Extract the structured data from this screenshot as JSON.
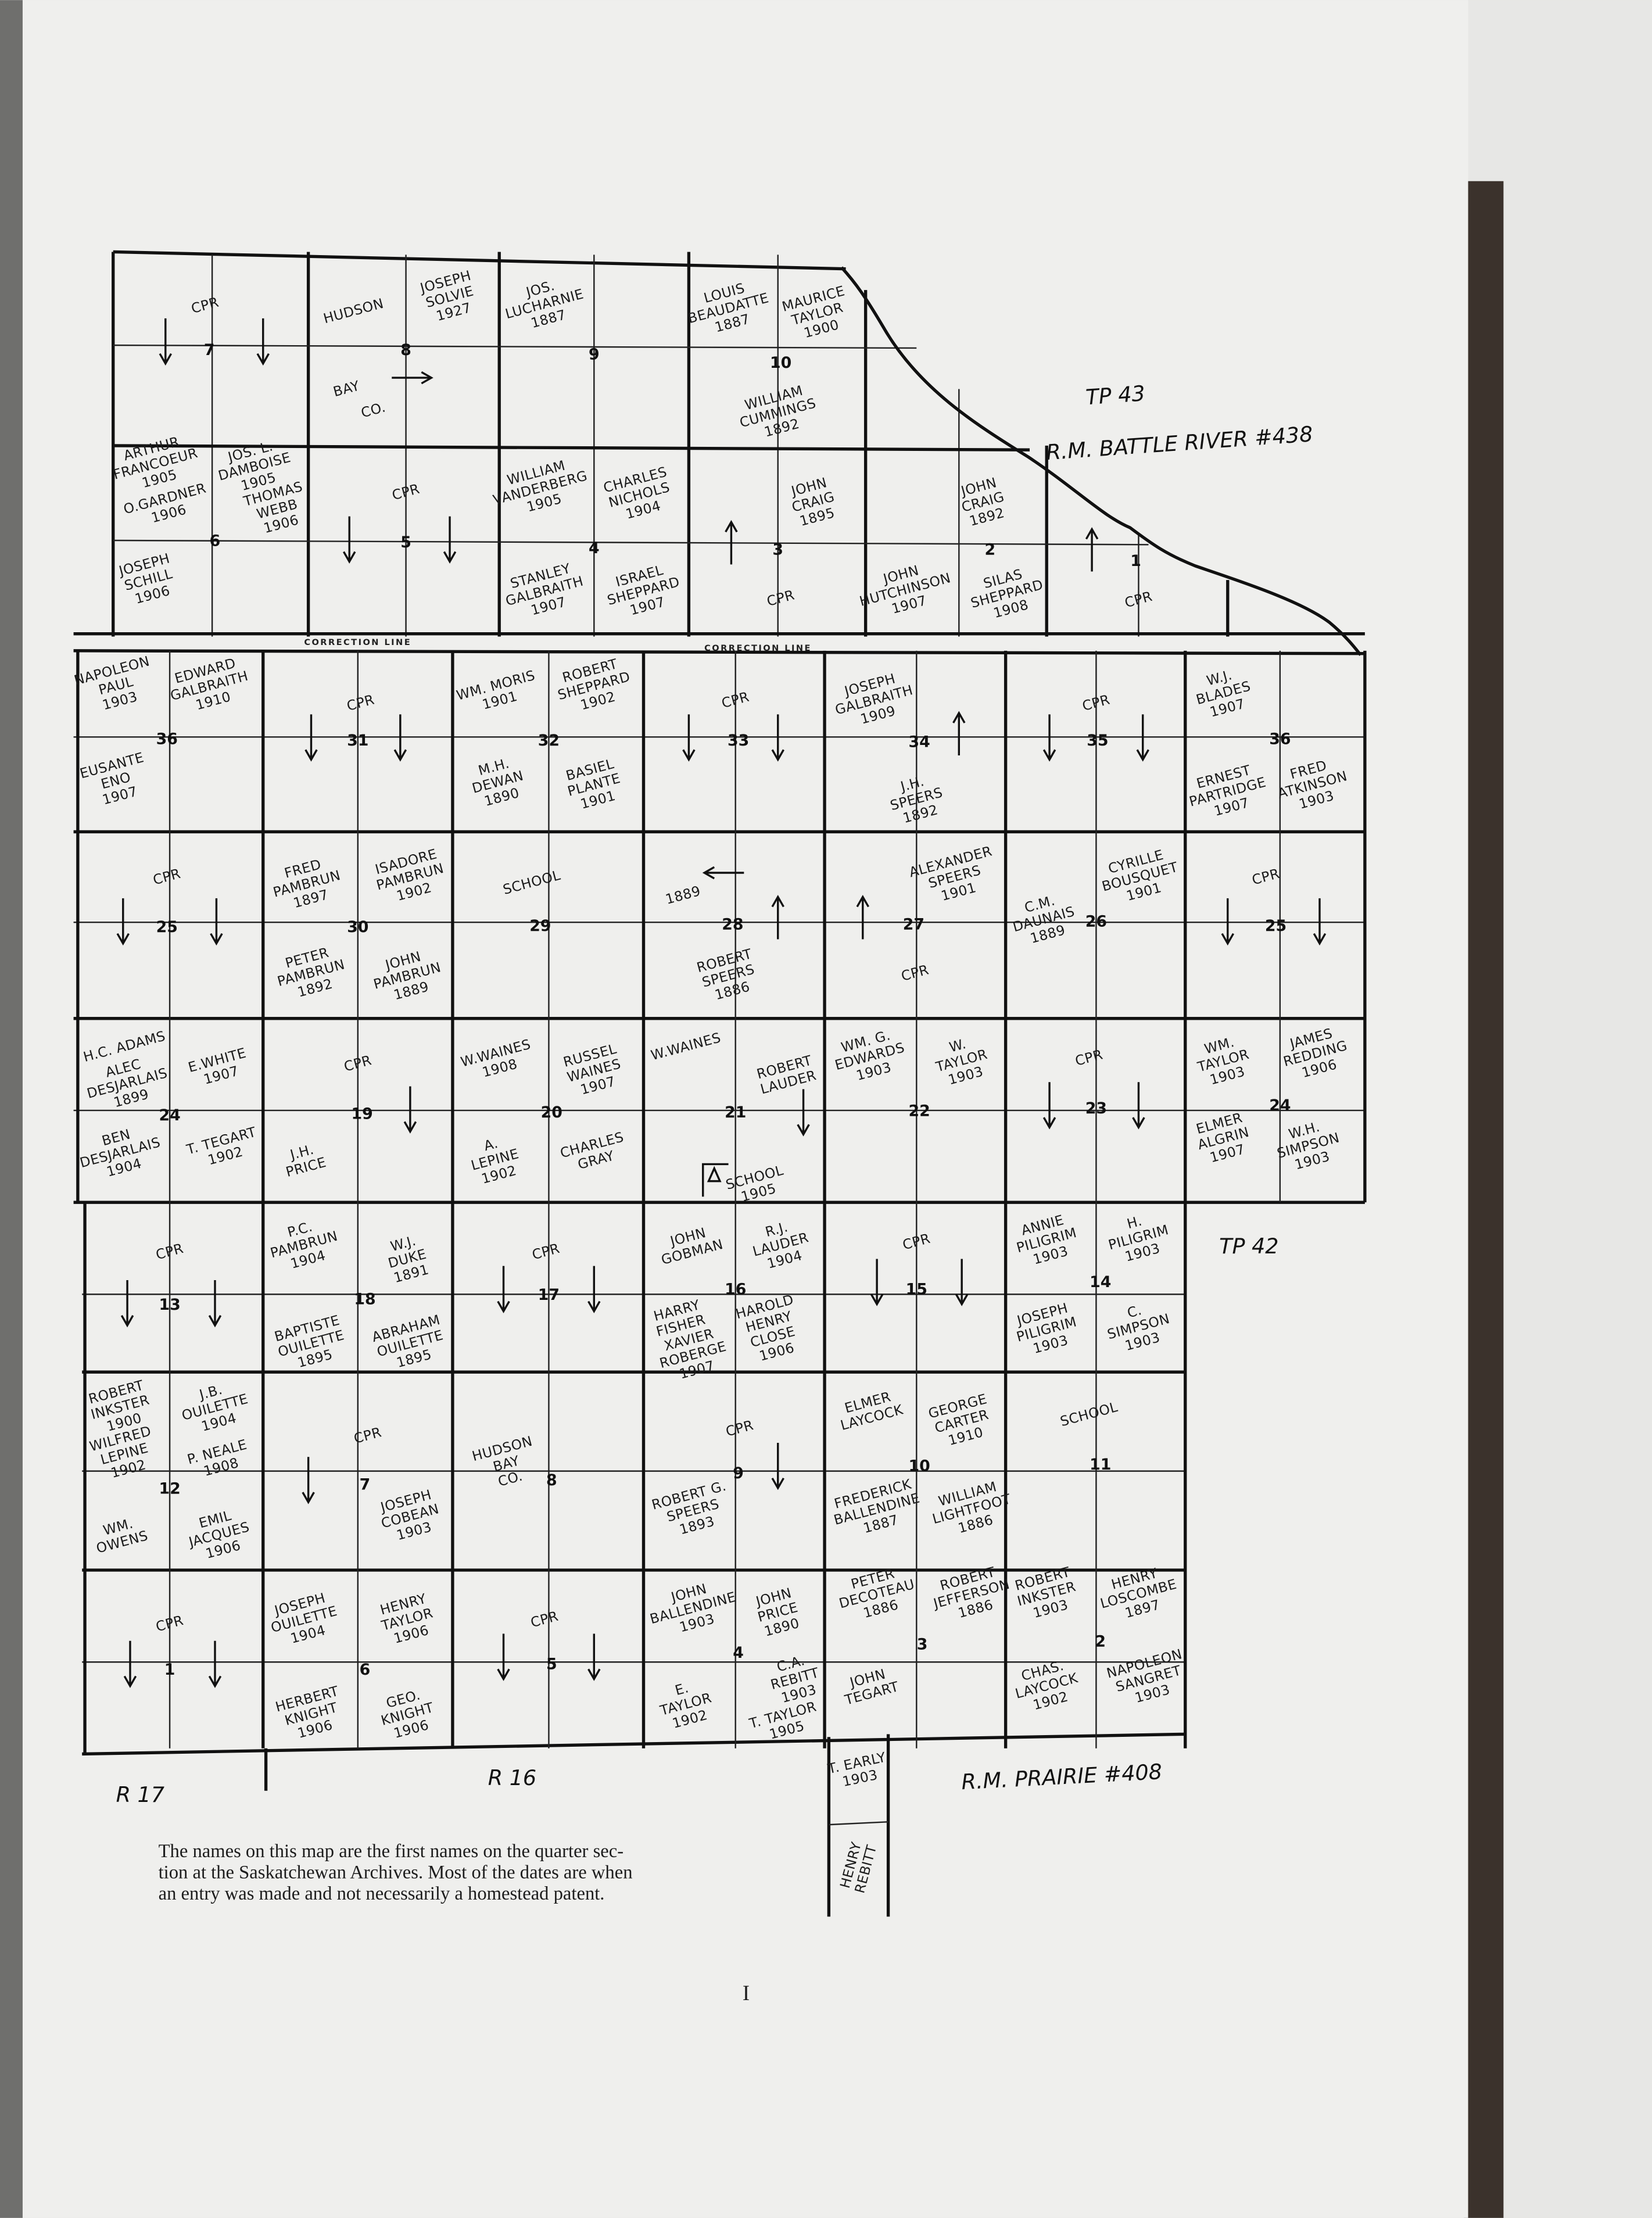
{
  "map": {
    "correction_line": "CORRECTION LINE",
    "tp43": "TP 43",
    "rm_north": "R.M. BATTLE RIVER #438",
    "tp42": "TP 42",
    "r17": "R 17",
    "r16": "R 16",
    "rm_south": "R.M. PRAIRIE #408",
    "extra_parcels": [
      [
        "T. EARLY",
        "1903"
      ],
      [
        "HENRY",
        "REBITT"
      ]
    ],
    "sections": [
      {
        "number": "7",
        "labels": [
          [
            "CPR"
          ]
        ]
      },
      {
        "number": "8",
        "labels": [
          [
            "HUDSON"
          ],
          [
            "BAY"
          ],
          [
            "CO."
          ],
          [
            "JOSEPH",
            "SOLVIE",
            "1927"
          ]
        ]
      },
      {
        "number": "9",
        "labels": [
          [
            "JOS.",
            "LUCHARNIE",
            "1887"
          ]
        ]
      },
      {
        "number": "10",
        "labels": [
          [
            "LOUIS",
            "BEAUDATTE",
            "1887"
          ],
          [
            "MAURICE",
            "TAYLOR",
            "1900"
          ],
          [
            "WILLIAM",
            "CUMMINGS",
            "1892"
          ]
        ]
      },
      {
        "number": "6",
        "labels": [
          [
            "ARTHUR",
            "FRANCOEUR",
            "1905"
          ],
          [
            "JOS. L.",
            "DAMBOISE",
            "1905"
          ],
          [
            "O.GARDNER",
            "1906"
          ],
          [
            "THOMAS",
            "WEBB",
            "1906"
          ],
          [
            "JOSEPH",
            "SCHILL",
            "1906"
          ]
        ]
      },
      {
        "number": "5",
        "labels": [
          [
            "CPR"
          ]
        ]
      },
      {
        "number": "4",
        "labels": [
          [
            "WILLIAM",
            "VANDERBERG",
            "1905"
          ],
          [
            "CHARLES",
            "NICHOLS",
            "1904"
          ],
          [
            "STANLEY",
            "GALBRAITH",
            "1907"
          ],
          [
            "ISRAEL",
            "SHEPPARD",
            "1907"
          ]
        ]
      },
      {
        "number": "3",
        "labels": [
          [
            "JOHN",
            "CRAIG",
            "1895"
          ],
          [
            "CPR"
          ]
        ]
      },
      {
        "number": "2",
        "labels": [
          [
            "JOHN",
            "CRAIG",
            "1892"
          ],
          [
            "JOHN",
            "HUTCHINSON",
            "1907"
          ],
          [
            "SILAS",
            "SHEPPARD",
            "1908"
          ]
        ]
      },
      {
        "number": "1",
        "labels": [
          [
            "CPR"
          ]
        ]
      },
      {
        "number": "36",
        "labels": [
          [
            "NAPOLEON",
            "PAUL",
            "1903"
          ],
          [
            "EDWARD",
            "GALBRAITH",
            "1910"
          ],
          [
            "EUSANTE",
            "ENO",
            "1907"
          ]
        ]
      },
      {
        "number": "31",
        "labels": [
          [
            "CPR"
          ]
        ]
      },
      {
        "number": "32",
        "labels": [
          [
            "WM. MORIS",
            "1901"
          ],
          [
            "ROBERT",
            "SHEPPARD",
            "1902"
          ],
          [
            "M.H.",
            "DEWAN",
            "1890"
          ],
          [
            "BASIEL",
            "PLANTE",
            "1901"
          ]
        ]
      },
      {
        "number": "33",
        "labels": [
          [
            "CPR"
          ]
        ]
      },
      {
        "number": "34",
        "labels": [
          [
            "JOSEPH",
            "GALBRAITH",
            "1909"
          ],
          [
            "J.H.",
            "SPEERS",
            "1892"
          ]
        ]
      },
      {
        "number": "35",
        "labels": [
          [
            "CPR"
          ]
        ]
      },
      {
        "number": "36",
        "labels": [
          [
            "W.J.",
            "BLADES",
            "1907"
          ],
          [
            "ERNEST",
            "PARTRIDGE",
            "1907"
          ],
          [
            "FRED",
            "ATKINSON",
            "1903"
          ]
        ]
      },
      {
        "number": "25",
        "labels": [
          [
            "CPR"
          ]
        ]
      },
      {
        "number": "30",
        "labels": [
          [
            "FRED",
            "PAMBRUN",
            "1897"
          ],
          [
            "ISADORE",
            "PAMBRUN",
            "1902"
          ],
          [
            "PETER",
            "PAMBRUN",
            "1892"
          ],
          [
            "JOHN",
            "PAMBRUN",
            "1889"
          ]
        ]
      },
      {
        "number": "29",
        "labels": [
          [
            "SCHOOL"
          ]
        ]
      },
      {
        "number": "28",
        "labels": [
          [
            "1889"
          ],
          [
            "ROBERT",
            "SPEERS",
            "1886"
          ]
        ]
      },
      {
        "number": "27",
        "labels": [
          [
            "ALEXANDER",
            "SPEERS",
            "1901"
          ],
          [
            "CPR"
          ]
        ]
      },
      {
        "number": "26",
        "labels": [
          [
            "C.M.",
            "DAUNAIS",
            "1889"
          ],
          [
            "CYRILLE",
            "BOUSQUET",
            "1901"
          ]
        ]
      },
      {
        "number": "25",
        "labels": [
          [
            "CPR"
          ]
        ]
      },
      {
        "number": "24",
        "labels": [
          [
            "H.C. ADAMS"
          ],
          [
            "ALEC",
            "DESJARLAIS",
            "1899"
          ],
          [
            "E.WHITE",
            "1907"
          ],
          [
            "BEN",
            "DESJARLAIS",
            "1904"
          ],
          [
            "T. TEGART",
            "1902"
          ]
        ]
      },
      {
        "number": "19",
        "labels": [
          [
            "CPR"
          ],
          [
            "J.H.",
            "PRICE"
          ]
        ]
      },
      {
        "number": "20",
        "labels": [
          [
            "W.WAINES",
            "1908"
          ],
          [
            "RUSSEL",
            "WAINES",
            "1907"
          ],
          [
            "A.",
            "LEPINE",
            "1902"
          ],
          [
            "CHARLES",
            "GRAY"
          ]
        ]
      },
      {
        "number": "21",
        "labels": [
          [
            "W.WAINES"
          ],
          [
            "ROBERT",
            "LAUDER"
          ],
          [
            "SCHOOL",
            "1905"
          ]
        ]
      },
      {
        "number": "22",
        "labels": [
          [
            "WM. G.",
            "EDWARDS",
            "1903"
          ],
          [
            "W.",
            "TAYLOR",
            "1903"
          ]
        ]
      },
      {
        "number": "23",
        "labels": [
          [
            "CPR"
          ]
        ]
      },
      {
        "number": "24",
        "labels": [
          [
            "WM.",
            "TAYLOR",
            "1903"
          ],
          [
            "JAMES",
            "REDDING",
            "1906"
          ],
          [
            "ELMER",
            "ALGRIN",
            "1907"
          ],
          [
            "W.H.",
            "SIMPSON",
            "1903"
          ]
        ]
      },
      {
        "number": "13",
        "labels": [
          [
            "CPR"
          ]
        ]
      },
      {
        "number": "18",
        "labels": [
          [
            "P.C.",
            "PAMBRUN",
            "1904"
          ],
          [
            "W.J.",
            "DUKE",
            "1891"
          ],
          [
            "BAPTISTE",
            "OUILETTE",
            "1895"
          ],
          [
            "ABRAHAM",
            "OUILETTE",
            "1895"
          ]
        ]
      },
      {
        "number": "17",
        "labels": [
          [
            "CPR"
          ]
        ]
      },
      {
        "number": "16",
        "labels": [
          [
            "JOHN",
            "GOBMAN"
          ],
          [
            "R.J.",
            "LAUDER",
            "1904"
          ],
          [
            "HARRY",
            "FISHER"
          ],
          [
            "XAVIER",
            "ROBERGE",
            "1907"
          ],
          [
            "HAROLD",
            "HENRY",
            "CLOSE",
            "1906"
          ]
        ]
      },
      {
        "number": "15",
        "labels": [
          [
            "CPR"
          ]
        ]
      },
      {
        "number": "14",
        "labels": [
          [
            "ANNIE",
            "PILIGRIM",
            "1903"
          ],
          [
            "H.",
            "PILIGRIM",
            "1903"
          ],
          [
            "JOSEPH",
            "PILIGRIM",
            "1903"
          ],
          [
            "C.",
            "SIMPSON",
            "1903"
          ]
        ]
      },
      {
        "number": "12",
        "labels": [
          [
            "ROBERT",
            "INKSTER",
            "1900"
          ],
          [
            "J.B.",
            "OUILETTE",
            "1904"
          ],
          [
            "WILFRED",
            "LEPINE",
            "1902"
          ],
          [
            "P. NEALE",
            "1908"
          ],
          [
            "WM.",
            "OWENS"
          ],
          [
            "EMIL",
            "JACQUES",
            "1906"
          ]
        ]
      },
      {
        "number": "7",
        "labels": [
          [
            "CPR"
          ],
          [
            "JOSEPH",
            "COBEAN",
            "1903"
          ]
        ]
      },
      {
        "number": "8",
        "labels": [
          [
            "HUDSON",
            "BAY",
            "CO."
          ]
        ]
      },
      {
        "number": "9",
        "labels": [
          [
            "CPR"
          ],
          [
            "ROBERT G.",
            "SPEERS",
            "1893"
          ]
        ]
      },
      {
        "number": "10",
        "labels": [
          [
            "ELMER",
            "LAYCOCK"
          ],
          [
            "GEORGE",
            "CARTER",
            "1910"
          ],
          [
            "FREDERICK",
            "BALLENDINE",
            "1887"
          ],
          [
            "WILLIAM",
            "LIGHTFOOT",
            "1886"
          ]
        ]
      },
      {
        "number": "11",
        "labels": [
          [
            "SCHOOL"
          ]
        ]
      },
      {
        "number": "1",
        "labels": [
          [
            "CPR"
          ]
        ]
      },
      {
        "number": "6",
        "labels": [
          [
            "JOSEPH",
            "OUILETTE",
            "1904"
          ],
          [
            "HENRY",
            "TAYLOR",
            "1906"
          ],
          [
            "HERBERT",
            "KNIGHT",
            "1906"
          ],
          [
            "GEO.",
            "KNIGHT",
            "1906"
          ]
        ]
      },
      {
        "number": "5",
        "labels": [
          [
            "CPR"
          ]
        ]
      },
      {
        "number": "4",
        "labels": [
          [
            "JOHN",
            "BALLENDINE",
            "1903"
          ],
          [
            "JOHN",
            "PRICE",
            "1890"
          ],
          [
            "E.",
            "TAYLOR",
            "1902"
          ],
          [
            "C.A.",
            "REBITT",
            "1903"
          ],
          [
            "T. TAYLOR",
            "1905"
          ]
        ]
      },
      {
        "number": "3",
        "labels": [
          [
            "PETER",
            "DECOTEAU",
            "1886"
          ],
          [
            "ROBERT",
            "JEFFERSON",
            "1886"
          ],
          [
            "JOHN",
            "TEGART"
          ]
        ]
      },
      {
        "number": "2",
        "labels": [
          [
            "ROBERT",
            "INKSTER",
            "1903"
          ],
          [
            "HENRY",
            "LOSCOMBE",
            "1897"
          ],
          [
            "CHAS.",
            "LAYCOCK",
            "1902"
          ],
          [
            "NAPOLEON",
            "SANGRET",
            "1903"
          ]
        ]
      }
    ]
  },
  "caption": [
    "The names on this map are the first names on the quarter sec-",
    "tion at the Saskatchewan Archives. Most of the dates are when",
    "an entry was made and not necessarily a homestead patent."
  ],
  "page_number": "I"
}
